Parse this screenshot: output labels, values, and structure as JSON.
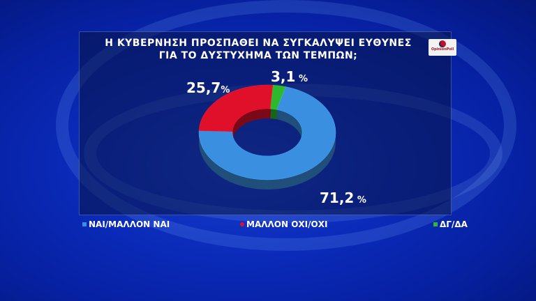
{
  "title_line1": "Η ΚΥΒΕΡΝΗΣΗ ΠΡΟΣΠΑΘΕΙ ΝΑ ΣΥΓΚΑΛΥΨΕΙ ΕΥΘΥΝΕΣ",
  "title_line2": "ΓΙΑ ΤΟ ΔΥΣΤΥΧΗΜΑ ΤΩΝ ΤΕΜΠΩΝ;",
  "logo_text": "OpinionPoll",
  "chart_data": {
    "type": "pie",
    "title": "Η ΚΥΒΕΡΝΗΣΗ ΠΡΟΣΠΑΘΕΙ ΝΑ ΣΥΓΚΑΛΥΨΕΙ ΕΥΘΥΝΕΣ ΓΙΑ ΤΟ ΔΥΣΤΥΧΗΜΑ ΤΩΝ ΤΕΜΠΩΝ;",
    "donut": true,
    "legend_placement": "bottom",
    "slices": [
      {
        "name": "ΔΓ/ΔΑ",
        "value": 3.1,
        "label": "3,1",
        "color": "#2db82d"
      },
      {
        "name": "ΝΑΙ/ΜΑΛΛΟΝ ΝΑΙ",
        "value": 71.2,
        "label": "71,2",
        "color": "#3a8fe0"
      },
      {
        "name": "ΜΑΛΛΟΝ ΟΧΙ/ΟΧΙ",
        "value": 25.7,
        "label": "25,7",
        "color": "#e0102a"
      }
    ],
    "unit": "%"
  }
}
